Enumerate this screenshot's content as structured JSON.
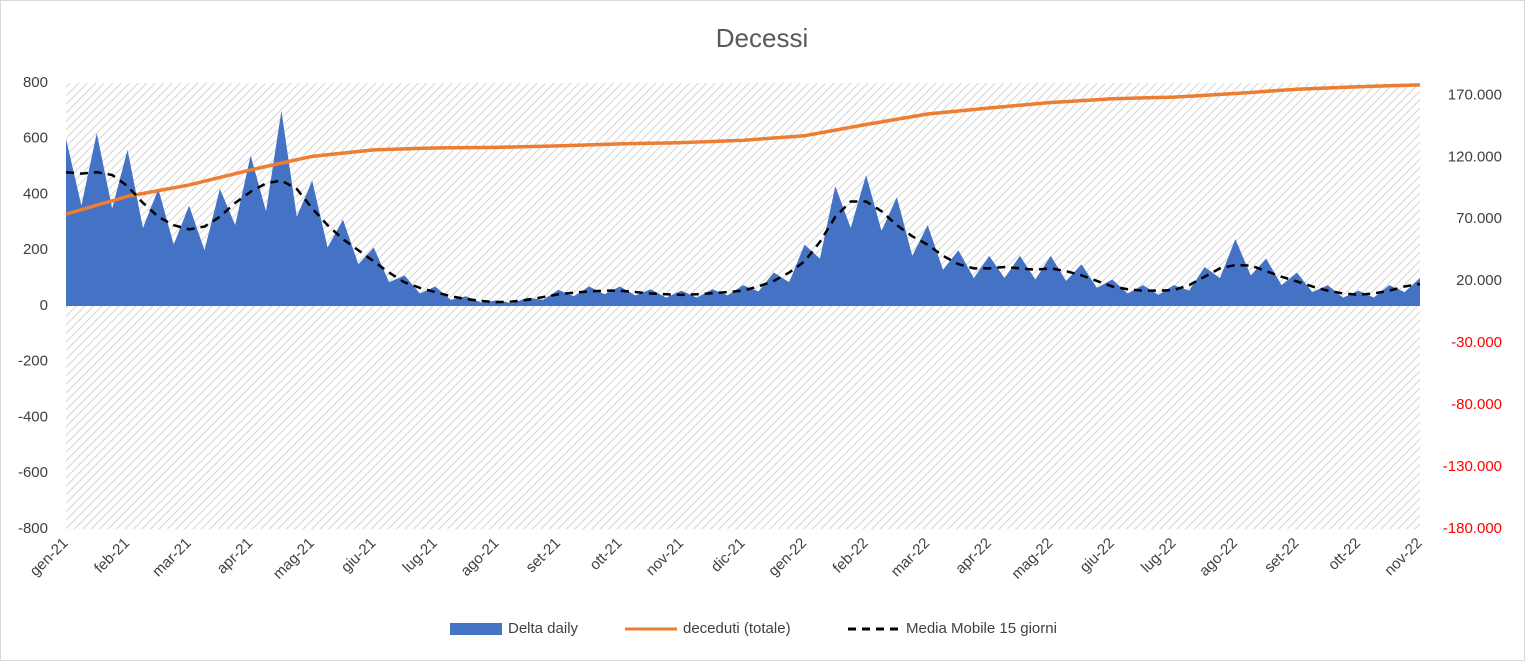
{
  "chart_data": {
    "type": "combo",
    "title": "Decessi",
    "categories": [
      "gen-21",
      null,
      null,
      null,
      "feb-21",
      null,
      null,
      null,
      "mar-21",
      null,
      null,
      null,
      "apr-21",
      null,
      null,
      null,
      "mag-21",
      null,
      null,
      null,
      "giu-21",
      null,
      null,
      null,
      "lug-21",
      null,
      null,
      null,
      "ago-21",
      null,
      null,
      null,
      "set-21",
      null,
      null,
      null,
      "ott-21",
      null,
      null,
      null,
      "nov-21",
      null,
      null,
      null,
      "dic-21",
      null,
      null,
      null,
      "gen-22",
      null,
      null,
      null,
      "feb-22",
      null,
      null,
      null,
      "mar-22",
      null,
      null,
      null,
      "apr-22",
      null,
      null,
      null,
      "mag-22",
      null,
      null,
      null,
      "giu-22",
      null,
      null,
      null,
      "lug-22",
      null,
      null,
      null,
      "ago-22",
      null,
      null,
      null,
      "set-22",
      null,
      null,
      null,
      "ott-22",
      null,
      null,
      null,
      "nov-22"
    ],
    "series": [
      {
        "name": "Delta daily",
        "type": "area",
        "color": "#4472c4",
        "axis": "y",
        "values": [
          600,
          360,
          620,
          350,
          560,
          280,
          420,
          220,
          360,
          200,
          420,
          290,
          540,
          340,
          700,
          320,
          450,
          210,
          310,
          150,
          210,
          85,
          110,
          45,
          70,
          22,
          35,
          12,
          20,
          10,
          30,
          22,
          58,
          35,
          70,
          42,
          70,
          38,
          60,
          30,
          55,
          30,
          60,
          38,
          75,
          52,
          120,
          85,
          220,
          170,
          430,
          280,
          470,
          270,
          390,
          180,
          290,
          130,
          200,
          100,
          180,
          100,
          180,
          95,
          180,
          90,
          150,
          65,
          95,
          45,
          75,
          40,
          75,
          55,
          140,
          100,
          240,
          110,
          170,
          75,
          120,
          50,
          75,
          30,
          55,
          30,
          75,
          50,
          100
        ]
      },
      {
        "name": "deceduti (totale)",
        "type": "line",
        "color": "#ed7d31",
        "axis": "y2",
        "dashed": false,
        "values": [
          74159,
          77748,
          81338,
          84927,
          88516,
          90812,
          93108,
          95403,
          97699,
          100736,
          103773,
          106810,
          109847,
          112587,
          115327,
          118067,
          120807,
          122117,
          123427,
          124736,
          126046,
          126426,
          126806,
          127186,
          127566,
          127692,
          127817,
          127943,
          128068,
          128356,
          128645,
          128933,
          129221,
          129633,
          130046,
          130458,
          130870,
          131117,
          131363,
          131610,
          131856,
          132327,
          132798,
          133268,
          133739,
          134655,
          135571,
          136486,
          137402,
          139676,
          141950,
          144224,
          146498,
          148624,
          150749,
          152875,
          155000,
          156196,
          157392,
          158588,
          159784,
          160899,
          162014,
          163129,
          164244,
          165005,
          165766,
          166526,
          167287,
          167616,
          167946,
          168275,
          168604,
          169328,
          170052,
          170776,
          171500,
          172375,
          173250,
          174125,
          175000,
          175500,
          176000,
          176500,
          177000,
          177375,
          177750,
          178125,
          178500
        ]
      },
      {
        "name": "Media Mobile 15 giorni",
        "type": "line",
        "color": "#000000",
        "axis": "y",
        "dashed": true,
        "values": [
          480,
          475,
          480,
          470,
          430,
          370,
          320,
          290,
          275,
          285,
          320,
          370,
          410,
          440,
          450,
          420,
          350,
          290,
          240,
          200,
          160,
          120,
          85,
          65,
          50,
          35,
          25,
          18,
          14,
          16,
          22,
          32,
          42,
          48,
          52,
          55,
          55,
          50,
          45,
          42,
          40,
          42,
          46,
          50,
          55,
          70,
          90,
          120,
          160,
          230,
          320,
          375,
          375,
          340,
          290,
          250,
          220,
          180,
          150,
          135,
          135,
          140,
          135,
          130,
          135,
          125,
          110,
          90,
          70,
          60,
          55,
          55,
          57,
          75,
          105,
          135,
          147,
          145,
          125,
          105,
          88,
          70,
          55,
          45,
          40,
          45,
          55,
          70,
          79
        ]
      }
    ],
    "ylim": [
      -800,
      800
    ],
    "yticks": [
      -800,
      -600,
      -400,
      -200,
      0,
      200,
      400,
      600,
      800
    ],
    "y2lim": [
      -180000,
      180000
    ],
    "y2ticks": [
      {
        "value": -180000,
        "label": "-180.000"
      },
      {
        "value": -130000,
        "label": "-130.000"
      },
      {
        "value": -80000,
        "label": "-80.000"
      },
      {
        "value": -30000,
        "label": "-30.000"
      },
      {
        "value": 20000,
        "label": "20.000"
      },
      {
        "value": 70000,
        "label": "70.000"
      },
      {
        "value": 120000,
        "label": "120.000"
      },
      {
        "value": 170000,
        "label": "170.000"
      }
    ],
    "y2_negative_color": "#ff0000",
    "grid": false,
    "legend": "bottom"
  }
}
